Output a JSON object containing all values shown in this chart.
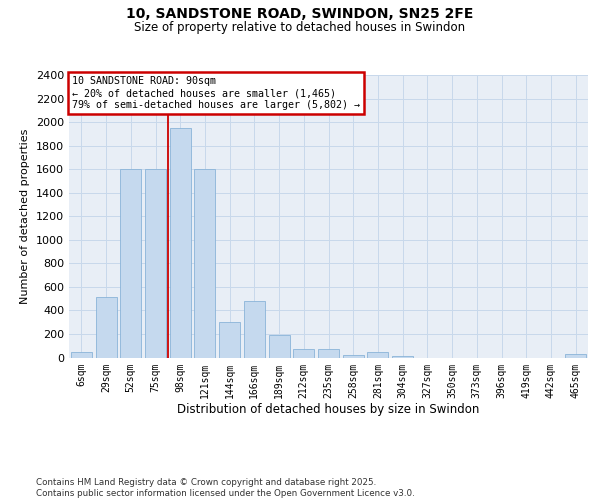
{
  "title1": "10, SANDSTONE ROAD, SWINDON, SN25 2FE",
  "title2": "Size of property relative to detached houses in Swindon",
  "xlabel": "Distribution of detached houses by size in Swindon",
  "ylabel": "Number of detached properties",
  "footer": "Contains HM Land Registry data © Crown copyright and database right 2025.\nContains public sector information licensed under the Open Government Licence v3.0.",
  "categories": [
    "6sqm",
    "29sqm",
    "52sqm",
    "75sqm",
    "98sqm",
    "121sqm",
    "144sqm",
    "166sqm",
    "189sqm",
    "212sqm",
    "235sqm",
    "258sqm",
    "281sqm",
    "304sqm",
    "327sqm",
    "350sqm",
    "373sqm",
    "396sqm",
    "419sqm",
    "442sqm",
    "465sqm"
  ],
  "values": [
    50,
    510,
    1600,
    1600,
    1950,
    1600,
    305,
    480,
    195,
    75,
    75,
    25,
    50,
    10,
    0,
    0,
    0,
    0,
    0,
    0,
    30
  ],
  "bar_color": "#c5d9ee",
  "bar_edge_color": "#8ab4d8",
  "grid_color": "#c8d8eb",
  "bg_color": "#e8eef6",
  "vline_color": "#cc0000",
  "vline_bin_index": 4,
  "annotation_title": "10 SANDSTONE ROAD: 90sqm",
  "annotation_line1": "← 20% of detached houses are smaller (1,465)",
  "annotation_line2": "79% of semi-detached houses are larger (5,802) →",
  "annotation_box_edgecolor": "#cc0000",
  "ylim": [
    0,
    2400
  ],
  "yticks": [
    0,
    200,
    400,
    600,
    800,
    1000,
    1200,
    1400,
    1600,
    1800,
    2000,
    2200,
    2400
  ]
}
